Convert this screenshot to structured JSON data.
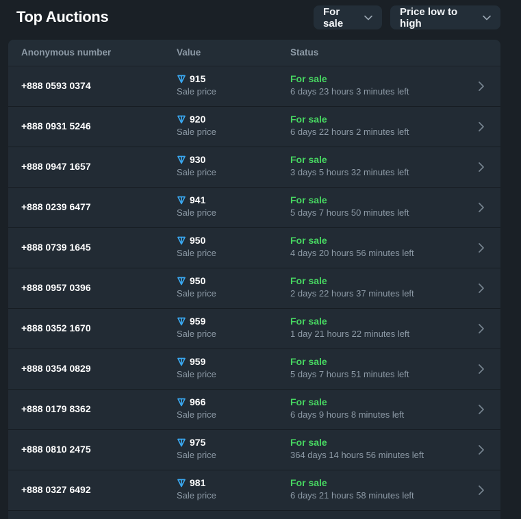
{
  "header": {
    "title": "Top Auctions",
    "filter_label": "For sale",
    "sort_label": "Price low to high"
  },
  "table": {
    "columns": [
      "Anonymous number",
      "Value",
      "Status"
    ],
    "rows": [
      {
        "number": "+888 0593 0374",
        "value": "915",
        "value_caption": "Sale price",
        "status": "For sale",
        "time_left": "6 days 23 hours 3 minutes left"
      },
      {
        "number": "+888 0931 5246",
        "value": "920",
        "value_caption": "Sale price",
        "status": "For sale",
        "time_left": "6 days 22 hours 2 minutes left"
      },
      {
        "number": "+888 0947 1657",
        "value": "930",
        "value_caption": "Sale price",
        "status": "For sale",
        "time_left": "3 days 5 hours 32 minutes left"
      },
      {
        "number": "+888 0239 6477",
        "value": "941",
        "value_caption": "Sale price",
        "status": "For sale",
        "time_left": "5 days 7 hours 50 minutes left"
      },
      {
        "number": "+888 0739 1645",
        "value": "950",
        "value_caption": "Sale price",
        "status": "For sale",
        "time_left": "4 days 20 hours 56 minutes left"
      },
      {
        "number": "+888 0957 0396",
        "value": "950",
        "value_caption": "Sale price",
        "status": "For sale",
        "time_left": "2 days 22 hours 37 minutes left"
      },
      {
        "number": "+888 0352 1670",
        "value": "959",
        "value_caption": "Sale price",
        "status": "For sale",
        "time_left": "1 day 21 hours 22 minutes left"
      },
      {
        "number": "+888 0354 0829",
        "value": "959",
        "value_caption": "Sale price",
        "status": "For sale",
        "time_left": "5 days 7 hours 51 minutes left"
      },
      {
        "number": "+888 0179 8362",
        "value": "966",
        "value_caption": "Sale price",
        "status": "For sale",
        "time_left": "6 days 9 hours 8 minutes left"
      },
      {
        "number": "+888 0810 2475",
        "value": "975",
        "value_caption": "Sale price",
        "status": "For sale",
        "time_left": "364 days 14 hours 56 minutes left"
      },
      {
        "number": "+888 0327 6492",
        "value": "981",
        "value_caption": "Sale price",
        "status": "For sale",
        "time_left": "6 days 21 hours 58 minutes left"
      }
    ]
  },
  "icons": {
    "currency": "ton-icon",
    "row_arrow": "chevron-right-icon",
    "dropdown_arrow": "chevron-down-icon"
  },
  "colors": {
    "background": "#1a2026",
    "panel": "#222b34",
    "status_green": "#47d661",
    "currency_blue": "#3aa7ef",
    "muted_text": "#8d9aa6"
  }
}
